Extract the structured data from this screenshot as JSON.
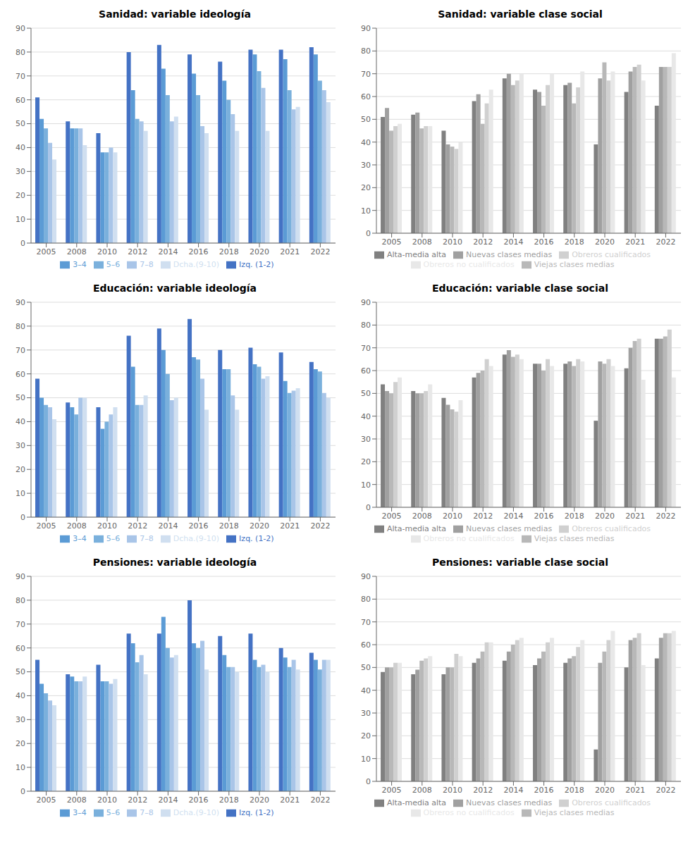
{
  "chart_data": [
    {
      "type": "bar",
      "title": "Sanidad: variable ideología",
      "categories": [
        "2005",
        "2008",
        "2010",
        "2012",
        "2014",
        "2016",
        "2018",
        "2020",
        "2021",
        "2022"
      ],
      "series": [
        {
          "name": "Izq. (1-2)",
          "color": "#4472C4",
          "values": [
            61,
            51,
            46,
            80,
            83,
            79,
            76,
            81,
            81,
            82
          ]
        },
        {
          "name": "3–4",
          "color": "#5B9BD5",
          "values": [
            52,
            48,
            38,
            64,
            73,
            71,
            68,
            79,
            77,
            79
          ]
        },
        {
          "name": "5–6",
          "color": "#7AB0DC",
          "values": [
            48,
            48,
            38,
            52,
            62,
            62,
            60,
            72,
            64,
            68
          ]
        },
        {
          "name": "7–8",
          "color": "#A9C5E8",
          "values": [
            42,
            48,
            40,
            51,
            51,
            49,
            54,
            65,
            56,
            64
          ]
        },
        {
          "name": "Dcha.(9-10)",
          "color": "#D0DFF0",
          "values": [
            35,
            41,
            38,
            47,
            53,
            46,
            47,
            47,
            57,
            59
          ]
        }
      ],
      "ylim": [
        0,
        90
      ],
      "yticks": [
        0,
        10,
        20,
        30,
        40,
        50,
        60,
        70,
        80,
        90
      ],
      "grid": true,
      "legend": "bottom"
    },
    {
      "type": "bar",
      "title": "Sanidad: variable clase social",
      "categories": [
        "2005",
        "2008",
        "2010",
        "2012",
        "2014",
        "2016",
        "2018",
        "2020",
        "2021",
        "2022"
      ],
      "series": [
        {
          "name": "Alta-media alta",
          "color": "#808080",
          "values": [
            51,
            52,
            45,
            58,
            68,
            63,
            65,
            39,
            62,
            56
          ]
        },
        {
          "name": "Nuevas clases medias",
          "color": "#A0A0A0",
          "values": [
            55,
            53,
            39,
            61,
            70,
            62,
            66,
            68,
            71,
            73
          ]
        },
        {
          "name": "Viejas clases medias",
          "color": "#B8B8B8",
          "values": [
            45,
            46,
            38,
            48,
            65,
            56,
            57,
            75,
            73,
            73
          ]
        },
        {
          "name": "Obreros cualificados",
          "color": "#D0D0D0",
          "values": [
            47,
            47,
            37,
            57,
            67,
            65,
            64,
            67,
            74,
            73
          ]
        },
        {
          "name": "Obreros no cualificados",
          "color": "#E8E8E8",
          "values": [
            48,
            47,
            40,
            63,
            70,
            70,
            71,
            71,
            67,
            79
          ]
        }
      ],
      "ylim": [
        0,
        90
      ],
      "yticks": [
        0,
        10,
        20,
        30,
        40,
        50,
        60,
        70,
        80,
        90
      ],
      "grid": true,
      "legend": "bottom"
    },
    {
      "type": "bar",
      "title": "Educación: variable ideología",
      "categories": [
        "2005",
        "2008",
        "2010",
        "2012",
        "2014",
        "2016",
        "2018",
        "2020",
        "2021",
        "2022"
      ],
      "series": [
        {
          "name": "Izq. (1-2)",
          "color": "#4472C4",
          "values": [
            58,
            48,
            46,
            76,
            79,
            83,
            70,
            71,
            69,
            65
          ]
        },
        {
          "name": "3–4",
          "color": "#5B9BD5",
          "values": [
            50,
            46,
            37,
            63,
            70,
            67,
            62,
            64,
            57,
            62
          ]
        },
        {
          "name": "5–6",
          "color": "#7AB0DC",
          "values": [
            47,
            43,
            40,
            47,
            60,
            66,
            62,
            63,
            52,
            61
          ]
        },
        {
          "name": "7–8",
          "color": "#A9C5E8",
          "values": [
            46,
            50,
            43,
            47,
            49,
            58,
            51,
            58,
            53,
            52
          ]
        },
        {
          "name": "Dcha.(9-10)",
          "color": "#D0DFF0",
          "values": [
            41,
            50,
            46,
            51,
            50,
            45,
            45,
            59,
            54,
            50
          ]
        }
      ],
      "ylim": [
        0,
        90
      ],
      "yticks": [
        0,
        10,
        20,
        30,
        40,
        50,
        60,
        70,
        80,
        90
      ],
      "grid": true,
      "legend": "bottom"
    },
    {
      "type": "bar",
      "title": "Educación: variable clase social",
      "categories": [
        "2005",
        "2008",
        "2010",
        "2012",
        "2014",
        "2016",
        "2018",
        "2020",
        "2021",
        "2022"
      ],
      "series": [
        {
          "name": "Alta-media alta",
          "color": "#808080",
          "values": [
            54,
            51,
            48,
            57,
            67,
            63,
            63,
            38,
            61,
            74
          ]
        },
        {
          "name": "Nuevas clases medias",
          "color": "#A0A0A0",
          "values": [
            51,
            50,
            45,
            59,
            69,
            63,
            64,
            64,
            70,
            74
          ]
        },
        {
          "name": "Viejas clases medias",
          "color": "#B8B8B8",
          "values": [
            50,
            50,
            43,
            60,
            66,
            60,
            62,
            63,
            73,
            75
          ]
        },
        {
          "name": "Obreros cualificados",
          "color": "#D0D0D0",
          "values": [
            55,
            51,
            42,
            65,
            67,
            65,
            65,
            65,
            74,
            78
          ]
        },
        {
          "name": "Obreros no cualificados",
          "color": "#E8E8E8",
          "values": [
            57,
            54,
            47,
            62,
            65,
            62,
            64,
            62,
            56,
            57
          ]
        }
      ],
      "ylim": [
        0,
        90
      ],
      "yticks": [
        0,
        10,
        20,
        30,
        40,
        50,
        60,
        70,
        80,
        90
      ],
      "grid": true,
      "legend": "bottom"
    },
    {
      "type": "bar",
      "title": "Pensiones: variable ideología",
      "categories": [
        "2005",
        "2008",
        "2010",
        "2012",
        "2014",
        "2016",
        "2018",
        "2020",
        "2021",
        "2022"
      ],
      "series": [
        {
          "name": "Izq. (1-2)",
          "color": "#4472C4",
          "values": [
            55,
            49,
            53,
            66,
            66,
            80,
            65,
            66,
            60,
            58
          ]
        },
        {
          "name": "3–4",
          "color": "#5B9BD5",
          "values": [
            45,
            48,
            46,
            62,
            73,
            62,
            57,
            55,
            56,
            55
          ]
        },
        {
          "name": "5–6",
          "color": "#7AB0DC",
          "values": [
            41,
            46,
            46,
            54,
            60,
            60,
            52,
            52,
            52,
            51
          ]
        },
        {
          "name": "7–8",
          "color": "#A9C5E8",
          "values": [
            38,
            46,
            45,
            57,
            56,
            63,
            52,
            53,
            55,
            55
          ]
        },
        {
          "name": "Dcha.(9-10)",
          "color": "#D0DFF0",
          "values": [
            36,
            48,
            47,
            49,
            57,
            51,
            50,
            50,
            51,
            55
          ]
        }
      ],
      "ylim": [
        0,
        90
      ],
      "yticks": [
        0,
        10,
        20,
        30,
        40,
        50,
        60,
        70,
        80,
        90
      ],
      "grid": true,
      "legend": "bottom"
    },
    {
      "type": "bar",
      "title": "Pensiones: variable clase social",
      "categories": [
        "2005",
        "2008",
        "2010",
        "2012",
        "2014",
        "2016",
        "2018",
        "2020",
        "2021",
        "2022"
      ],
      "series": [
        {
          "name": "Alta-media alta",
          "color": "#808080",
          "values": [
            48,
            47,
            47,
            52,
            53,
            51,
            52,
            14,
            50,
            54
          ]
        },
        {
          "name": "Nuevas clases medias",
          "color": "#A0A0A0",
          "values": [
            50,
            49,
            50,
            54,
            57,
            54,
            54,
            52,
            62,
            63
          ]
        },
        {
          "name": "Viejas clases medias",
          "color": "#B8B8B8",
          "values": [
            50,
            53,
            50,
            57,
            60,
            57,
            55,
            57,
            63,
            65
          ]
        },
        {
          "name": "Obreros cualificados",
          "color": "#D0D0D0",
          "values": [
            52,
            54,
            56,
            61,
            62,
            61,
            59,
            62,
            65,
            65
          ]
        },
        {
          "name": "Obreros no cualificados",
          "color": "#E8E8E8",
          "values": [
            52,
            55,
            55,
            61,
            63,
            63,
            62,
            66,
            51,
            66
          ]
        }
      ],
      "ylim": [
        0,
        90
      ],
      "yticks": [
        0,
        10,
        20,
        30,
        40,
        50,
        60,
        70,
        80,
        90
      ],
      "grid": true,
      "legend": "bottom"
    }
  ]
}
